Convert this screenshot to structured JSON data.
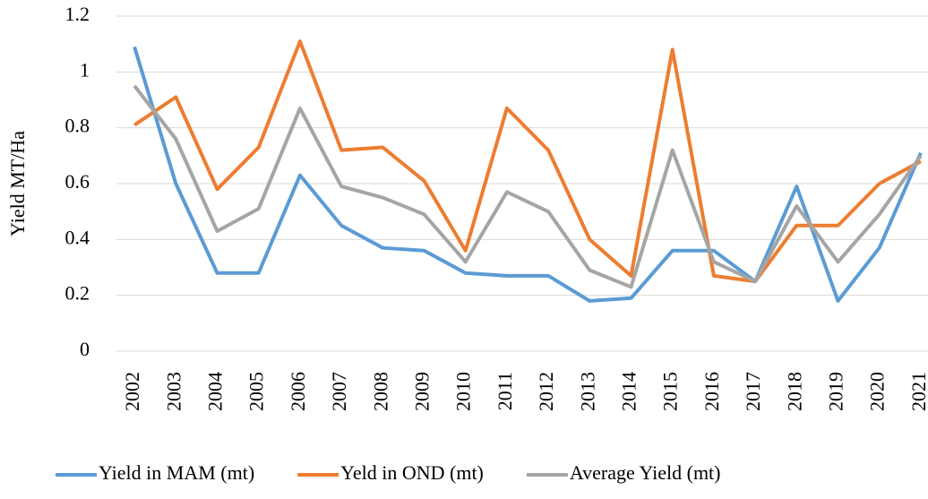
{
  "chart_data": {
    "type": "line",
    "y_label": "Yield MT/Ha",
    "categories": [
      "2002",
      "2003",
      "2004",
      "2005",
      "2006",
      "2007",
      "2008",
      "2009",
      "2010",
      "2011",
      "2012",
      "2013",
      "2014",
      "2015",
      "2016",
      "2017",
      "2018",
      "2019",
      "2020",
      "2021"
    ],
    "series": [
      {
        "name": "Yield in MAM (mt)",
        "color": "#5b9bd5",
        "values": [
          1.09,
          0.6,
          0.28,
          0.28,
          0.63,
          0.45,
          0.37,
          0.36,
          0.28,
          0.27,
          0.27,
          0.18,
          0.19,
          0.36,
          0.36,
          0.25,
          0.59,
          0.18,
          0.37,
          0.71
        ]
      },
      {
        "name": "Yeld in OND (mt)",
        "color": "#ed7d31",
        "values": [
          0.81,
          0.91,
          0.58,
          0.73,
          1.11,
          0.72,
          0.73,
          0.61,
          0.36,
          0.87,
          0.72,
          0.4,
          0.27,
          1.08,
          0.27,
          0.25,
          0.45,
          0.45,
          0.6,
          0.68
        ]
      },
      {
        "name": "Average Yield (mt)",
        "color": "#a5a5a5",
        "values": [
          0.95,
          0.76,
          0.43,
          0.51,
          0.87,
          0.59,
          0.55,
          0.49,
          0.32,
          0.57,
          0.5,
          0.29,
          0.23,
          0.72,
          0.32,
          0.25,
          0.52,
          0.32,
          0.49,
          0.7
        ]
      }
    ],
    "ylim": [
      0,
      1.2
    ],
    "yticks": [
      0,
      0.2,
      0.4,
      0.6,
      0.8,
      1,
      1.2
    ],
    "grid": true,
    "legend": "bottom"
  }
}
